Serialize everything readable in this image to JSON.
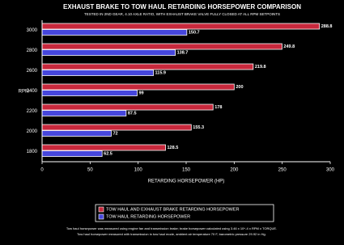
{
  "chart_data": {
    "type": "hbar",
    "title": "EXHAUST BRAKE TO TOW HAUL RETARDING HORSEPOWER COMPARISON",
    "subtitle": "TESTED IN 2ND GEAR, 4.10 AXLE RATIO, WITH EXHAUST BRAKE VALVE FULLY CLOSED AT ALL RPM SETPOINTS",
    "y_label": "RPM",
    "x_label": "RETARDING HORSEPOWER (HP)",
    "categories": [
      "3000",
      "2800",
      "2600",
      "2400",
      "2200",
      "2000",
      "1800"
    ],
    "series": [
      {
        "name": "TOW HAUL AND EXHAUST BRAKE RETARDING HORSEPOWER",
        "color": "#c8283c",
        "values": [
          288.8,
          249.8,
          219.8,
          200,
          178,
          155.3,
          128.5
        ]
      },
      {
        "name": "TOW HAUL RETARDING HORSEPOWER",
        "color": "#4646dc",
        "values": [
          150.7,
          138.7,
          115.9,
          99,
          87.5,
          72,
          62.5
        ]
      }
    ],
    "xlim": [
      0,
      300
    ],
    "xticks": [
      0,
      50,
      100,
      150,
      200,
      250,
      300
    ],
    "notes": [
      "Tow haul horsepower was measured using engine fan and transmission brake; brake horsepower calculated using 3.46 x 10^-4 x RPM x TORQUE.",
      "Tow haul horsepower measured with transmission in tow haul mode, ambient air temperature 70 F, barometric pressure 29.92 in Hg."
    ]
  }
}
